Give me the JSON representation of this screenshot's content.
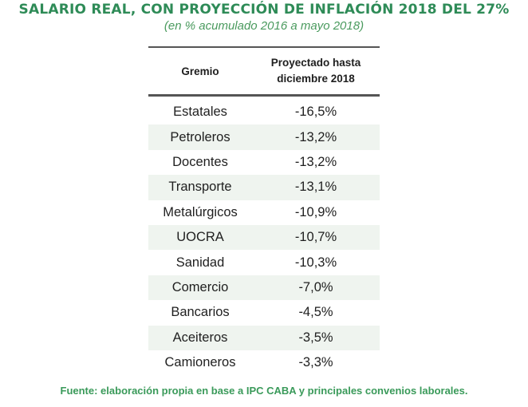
{
  "title": "SALARIO REAL, CON PROYECCIÓN DE INFLACIÓN 2018 DEL 27%",
  "subtitle": "(en % acumulado 2016 a mayo 2018)",
  "table": {
    "headers": {
      "gremio": "Gremio",
      "proyectado_line1": "Proyectado hasta",
      "proyectado_line2": "diciembre 2018"
    },
    "rows": [
      {
        "gremio": "Estatales",
        "valor": "-16,5%"
      },
      {
        "gremio": "Petroleros",
        "valor": "-13,2%"
      },
      {
        "gremio": "Docentes",
        "valor": "-13,2%"
      },
      {
        "gremio": "Transporte",
        "valor": "-13,1%"
      },
      {
        "gremio": "Metalúrgicos",
        "valor": "-10,9%"
      },
      {
        "gremio": "UOCRA",
        "valor": "-10,7%"
      },
      {
        "gremio": "Sanidad",
        "valor": "-10,3%"
      },
      {
        "gremio": "Comercio",
        "valor": "-7,0%"
      },
      {
        "gremio": "Bancarios",
        "valor": "-4,5%"
      },
      {
        "gremio": "Aceiteros",
        "valor": "-3,5%"
      },
      {
        "gremio": "Camioneros",
        "valor": "-3,3%"
      }
    ]
  },
  "source": "Fuente: elaboración propia en base a IPC CABA y principales convenios laborales.",
  "colors": {
    "title": "#2e8b57",
    "source": "#3a9a5a",
    "row_shade": "#eff4ef"
  }
}
